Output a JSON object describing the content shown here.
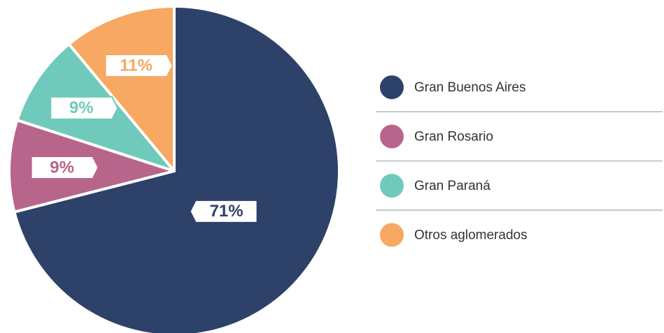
{
  "chart_data": {
    "type": "pie",
    "categories": [
      "Gran Buenos Aires",
      "Gran Rosario",
      "Gran Paraná",
      "Otros aglomerados"
    ],
    "values": [
      71,
      9,
      9,
      11
    ],
    "value_labels": [
      "71%",
      "9%",
      "9%",
      "11%"
    ],
    "colors": [
      "#2e4169",
      "#b8658b",
      "#6fcabb",
      "#f7a862"
    ]
  }
}
